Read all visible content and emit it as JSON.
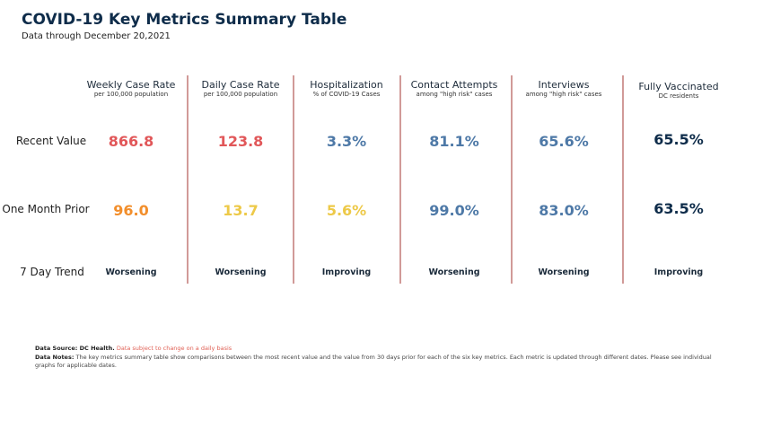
{
  "header": {
    "title": "COVID-19 Key Metrics Summary Table",
    "subtitle": "Data through December 20,2021"
  },
  "row_labels": {
    "recent": "Recent Value",
    "prior": "One Month Prior",
    "trend": "7 Day Trend"
  },
  "columns": [
    {
      "title": "Weekly Case Rate",
      "sub": "per 100,000 population",
      "recent": "866.8",
      "prior": "96.0",
      "trend": "Worsening",
      "recent_color": "#e15759",
      "prior_color": "#f28e2b"
    },
    {
      "title": "Daily Case Rate",
      "sub": "per 100,000 population",
      "recent": "123.8",
      "prior": "13.7",
      "trend": "Worsening",
      "recent_color": "#e15759",
      "prior_color": "#edc948"
    },
    {
      "title": "Hospitalization",
      "sub": "% of COVID-19 Cases",
      "recent": "3.3%",
      "prior": "5.6%",
      "trend": "Improving",
      "recent_color": "#4e79a7",
      "prior_color": "#edc948"
    },
    {
      "title": "Contact Attempts",
      "sub": "among \"high risk\" cases",
      "recent": "81.1%",
      "prior": "99.0%",
      "trend": "Worsening",
      "recent_color": "#4e79a7",
      "prior_color": "#4e79a7"
    },
    {
      "title": "Interviews",
      "sub": "among \"high risk\" cases",
      "recent": "65.6%",
      "prior": "83.0%",
      "trend": "Worsening",
      "recent_color": "#4e79a7",
      "prior_color": "#4e79a7"
    },
    {
      "title": "Fully Vaccinated",
      "sub": "DC residents",
      "recent": "65.5%",
      "prior": "63.5%",
      "trend": "Improving",
      "recent_color": "#0e2c4a",
      "prior_color": "#0e2c4a"
    }
  ],
  "footer": {
    "source_label": "Data Source: DC Health.",
    "source_note": "Data subject to change on a daily basis",
    "notes_label": "Data Notes:",
    "notes_text": "The key metrics summary table show comparisons between the most recent value and the value from 30 days prior for each of the six key metrics. Each metric is updated through different dates. Please see individual graphs for applicable dates."
  }
}
